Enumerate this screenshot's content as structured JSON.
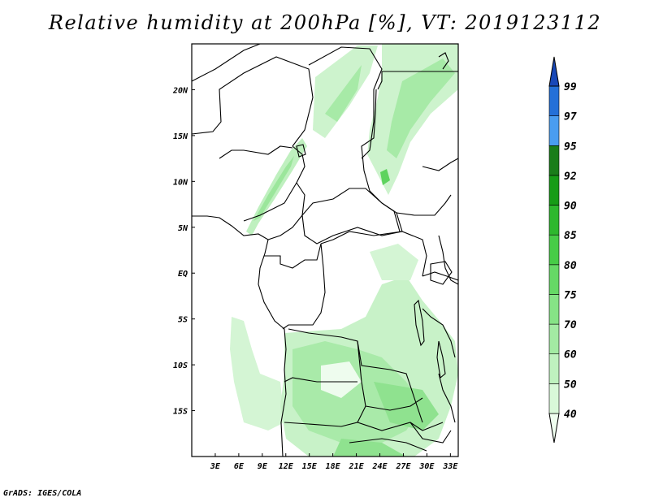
{
  "title": "Relative humidity at 200hPa [%], VT: 2019123112",
  "footer": "GrADS: IGES/COLA",
  "map": {
    "lon_range": [
      0,
      34
    ],
    "lat_range": [
      -20,
      25
    ],
    "lon_ticks": [
      {
        "value": 3,
        "label": "3E"
      },
      {
        "value": 6,
        "label": "6E"
      },
      {
        "value": 9,
        "label": "9E"
      },
      {
        "value": 12,
        "label": "12E"
      },
      {
        "value": 15,
        "label": "15E"
      },
      {
        "value": 18,
        "label": "18E"
      },
      {
        "value": 21,
        "label": "21E"
      },
      {
        "value": 24,
        "label": "24E"
      },
      {
        "value": 27,
        "label": "27E"
      },
      {
        "value": 30,
        "label": "30E"
      },
      {
        "value": 33,
        "label": "33E"
      }
    ],
    "lat_ticks": [
      {
        "value": 20,
        "label": "20N"
      },
      {
        "value": 15,
        "label": "15N"
      },
      {
        "value": 10,
        "label": "10N"
      },
      {
        "value": 5,
        "label": "5N"
      },
      {
        "value": 0,
        "label": "EQ"
      },
      {
        "value": -5,
        "label": "5S"
      },
      {
        "value": -10,
        "label": "10S"
      },
      {
        "value": -15,
        "label": "15S"
      }
    ]
  },
  "colorbar": {
    "levels": [
      "40",
      "50",
      "60",
      "70",
      "75",
      "80",
      "85",
      "90",
      "92",
      "95",
      "97",
      "99"
    ],
    "colors": [
      "#f0fff0",
      "#d9f9d9",
      "#bff2bf",
      "#a3eba3",
      "#86e386",
      "#66d966",
      "#47cc47",
      "#2eb82e",
      "#179c17",
      "#1a7d1a",
      "#4a9df0",
      "#2470d8",
      "#1848b8"
    ]
  }
}
